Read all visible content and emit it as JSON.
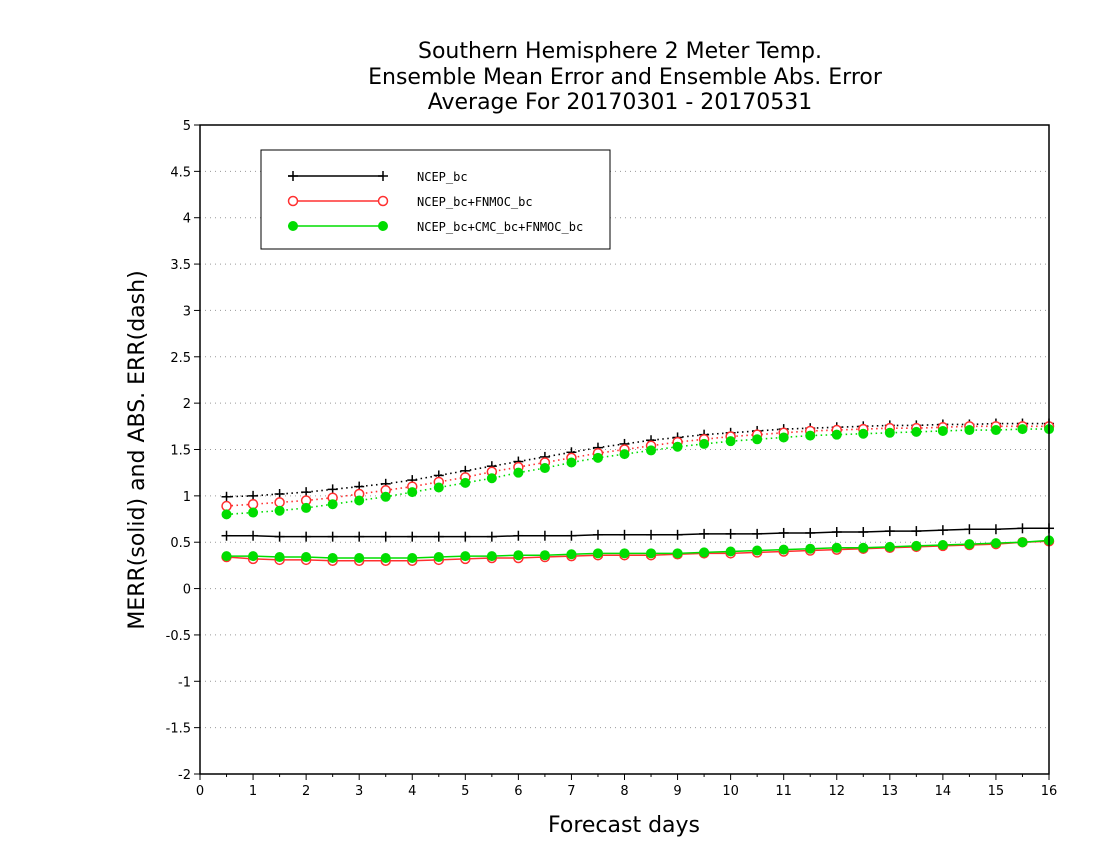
{
  "chart_data": {
    "type": "line",
    "title": [
      "Southern Hemisphere 2 Meter Temp.",
      "Ensemble Mean Error and Ensemble Abs. Error",
      "Average For 20170301 - 20170531"
    ],
    "xlabel": "Forecast days",
    "ylabel": "MERR(solid) and ABS. ERR(dash)",
    "xlim": [
      0,
      16
    ],
    "ylim": [
      -2,
      5
    ],
    "xticks": [
      "0",
      "1",
      "2",
      "3",
      "4",
      "5",
      "6",
      "7",
      "8",
      "9",
      "10",
      "11",
      "12",
      "13",
      "14",
      "15",
      "16"
    ],
    "yticks": [
      "-2",
      "-1.5",
      "-1",
      "-0.5",
      "0",
      "0.5",
      "1",
      "1.5",
      "2",
      "2.5",
      "3",
      "3.5",
      "4",
      "4.5",
      "5"
    ],
    "grid": "horizontal dotted",
    "legend_position": "top-left",
    "x": [
      0.5,
      1,
      1.5,
      2,
      2.5,
      3,
      3.5,
      4,
      4.5,
      5,
      5.5,
      6,
      6.5,
      7,
      7.5,
      8,
      8.5,
      9,
      9.5,
      10,
      10.5,
      11,
      11.5,
      12,
      12.5,
      13,
      13.5,
      14,
      14.5,
      15,
      15.5,
      16
    ],
    "series": [
      {
        "name": "NCEP_bc",
        "color": "#000000",
        "marker": "plus",
        "style": "solid",
        "legend": true,
        "values": [
          0.57,
          0.57,
          0.56,
          0.56,
          0.56,
          0.56,
          0.56,
          0.56,
          0.56,
          0.56,
          0.56,
          0.57,
          0.57,
          0.57,
          0.58,
          0.58,
          0.58,
          0.58,
          0.59,
          0.59,
          0.59,
          0.6,
          0.6,
          0.61,
          0.61,
          0.62,
          0.62,
          0.63,
          0.64,
          0.64,
          0.65,
          0.65
        ]
      },
      {
        "name": "NCEP_bc+FNMOC_bc",
        "color": "#ff3030",
        "marker": "open-circle",
        "style": "solid",
        "legend": true,
        "values": [
          0.34,
          0.32,
          0.31,
          0.31,
          0.3,
          0.3,
          0.3,
          0.3,
          0.31,
          0.32,
          0.33,
          0.33,
          0.34,
          0.35,
          0.36,
          0.36,
          0.36,
          0.37,
          0.38,
          0.38,
          0.39,
          0.4,
          0.41,
          0.42,
          0.43,
          0.44,
          0.45,
          0.46,
          0.47,
          0.48,
          0.5,
          0.51
        ]
      },
      {
        "name": "NCEP_bc+CMC_bc+FNMOC_bc",
        "color": "#00dd00",
        "marker": "filled-circle",
        "style": "solid",
        "legend": true,
        "values": [
          0.35,
          0.35,
          0.34,
          0.34,
          0.33,
          0.33,
          0.33,
          0.33,
          0.34,
          0.35,
          0.35,
          0.36,
          0.36,
          0.37,
          0.38,
          0.38,
          0.38,
          0.38,
          0.39,
          0.4,
          0.41,
          0.42,
          0.43,
          0.44,
          0.44,
          0.45,
          0.46,
          0.47,
          0.48,
          0.49,
          0.5,
          0.52
        ]
      },
      {
        "color": "#000000",
        "marker": "plus",
        "style": "dotted",
        "legend": false,
        "values": [
          0.99,
          1.0,
          1.02,
          1.04,
          1.07,
          1.1,
          1.13,
          1.17,
          1.22,
          1.27,
          1.32,
          1.37,
          1.42,
          1.47,
          1.52,
          1.56,
          1.6,
          1.63,
          1.66,
          1.68,
          1.7,
          1.72,
          1.73,
          1.74,
          1.75,
          1.76,
          1.76,
          1.77,
          1.77,
          1.78,
          1.78,
          1.78
        ]
      },
      {
        "color": "#ff3030",
        "marker": "open-circle",
        "style": "dotted",
        "legend": false,
        "values": [
          0.89,
          0.91,
          0.93,
          0.95,
          0.98,
          1.02,
          1.06,
          1.1,
          1.15,
          1.2,
          1.26,
          1.31,
          1.36,
          1.41,
          1.46,
          1.5,
          1.54,
          1.58,
          1.61,
          1.64,
          1.66,
          1.68,
          1.7,
          1.71,
          1.72,
          1.73,
          1.73,
          1.74,
          1.75,
          1.75,
          1.75,
          1.75
        ]
      },
      {
        "color": "#00dd00",
        "marker": "filled-circle",
        "style": "dotted",
        "legend": false,
        "values": [
          0.8,
          0.82,
          0.84,
          0.87,
          0.91,
          0.95,
          0.99,
          1.04,
          1.09,
          1.14,
          1.19,
          1.25,
          1.3,
          1.36,
          1.41,
          1.45,
          1.49,
          1.53,
          1.56,
          1.59,
          1.61,
          1.63,
          1.65,
          1.66,
          1.67,
          1.68,
          1.69,
          1.7,
          1.71,
          1.71,
          1.72,
          1.72
        ]
      }
    ]
  }
}
